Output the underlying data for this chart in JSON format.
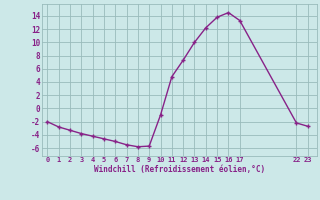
{
  "x": [
    0,
    1,
    2,
    3,
    4,
    5,
    6,
    7,
    8,
    9,
    10,
    11,
    12,
    13,
    14,
    15,
    16,
    17,
    22,
    23
  ],
  "y": [
    -2.0,
    -2.8,
    -3.3,
    -3.8,
    -4.2,
    -4.6,
    -5.0,
    -5.5,
    -5.8,
    -5.7,
    -1.0,
    4.8,
    7.3,
    10.0,
    12.2,
    13.8,
    14.5,
    13.3,
    -2.2,
    -2.7
  ],
  "line_color": "#882288",
  "marker_color": "#882288",
  "bg_color": "#cce8e8",
  "grid_color": "#99bbbb",
  "axis_color": "#882288",
  "xlabel": "Windchill (Refroidissement éolien,°C)",
  "xticks": [
    0,
    1,
    2,
    3,
    4,
    5,
    6,
    7,
    8,
    9,
    10,
    11,
    12,
    13,
    14,
    15,
    16,
    17,
    22,
    23
  ],
  "xtick_labels": [
    "0",
    "1",
    "2",
    "3",
    "4",
    "5",
    "6",
    "7",
    "8",
    "9",
    "10",
    "11",
    "12",
    "13",
    "14",
    "15",
    "16",
    "17",
    "22",
    "23"
  ],
  "yticks": [
    -6,
    -4,
    -2,
    0,
    2,
    4,
    6,
    8,
    10,
    12,
    14
  ],
  "ylim": [
    -7.2,
    15.8
  ],
  "xlim": [
    -0.5,
    23.8
  ]
}
